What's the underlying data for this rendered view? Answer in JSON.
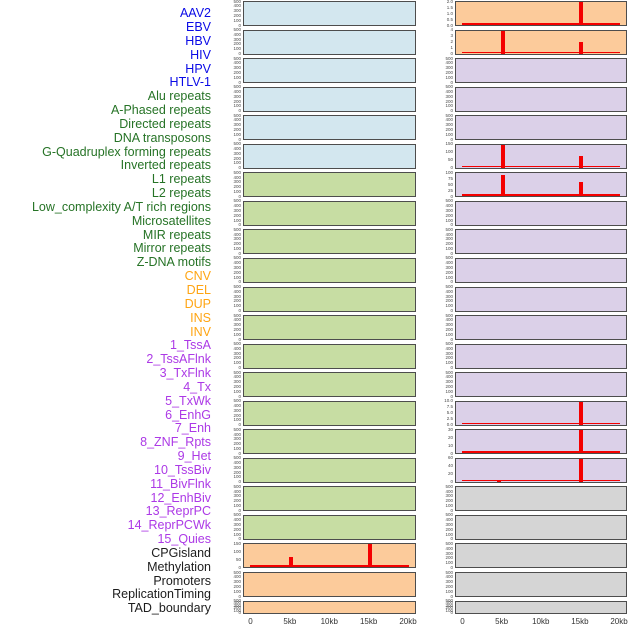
{
  "chart_data": {
    "type": "area",
    "description_style": "Multi-track genomic feature density figure: two columns of filled area panels, red spike overlays at 5kb and 15kb positions, shared 0-20kb x-axis",
    "x_axis": {
      "ticks": [
        "0",
        "5kb",
        "10kb",
        "15kb",
        "20kb"
      ],
      "range_kb": [
        0,
        20
      ],
      "grid": false,
      "legend": "none"
    },
    "row_labels": [
      {
        "text": "AAV2",
        "group": "virus"
      },
      {
        "text": "EBV",
        "group": "virus"
      },
      {
        "text": "HBV",
        "group": "virus"
      },
      {
        "text": "HIV",
        "group": "virus"
      },
      {
        "text": "HPV",
        "group": "virus"
      },
      {
        "text": "HTLV-1",
        "group": "virus"
      },
      {
        "text": "Alu repeats",
        "group": "repeat"
      },
      {
        "text": "A-Phased repeats",
        "group": "repeat"
      },
      {
        "text": "Directed repeats",
        "group": "repeat"
      },
      {
        "text": "DNA transposons",
        "group": "repeat"
      },
      {
        "text": "G-Quadruplex forming repeats",
        "group": "repeat"
      },
      {
        "text": "Inverted repeats",
        "group": "repeat"
      },
      {
        "text": "L1 repeats",
        "group": "repeat"
      },
      {
        "text": "L2 repeats",
        "group": "repeat"
      },
      {
        "text": "Low_complexity A/T rich regions",
        "group": "repeat"
      },
      {
        "text": "Microsatellites",
        "group": "repeat"
      },
      {
        "text": "MIR repeats",
        "group": "repeat"
      },
      {
        "text": "Mirror repeats",
        "group": "repeat"
      },
      {
        "text": "Z-DNA motifs",
        "group": "repeat"
      },
      {
        "text": "CNV",
        "group": "sv"
      },
      {
        "text": "DEL",
        "group": "sv"
      },
      {
        "text": "DUP",
        "group": "sv"
      },
      {
        "text": "INS",
        "group": "sv"
      },
      {
        "text": "INV",
        "group": "sv"
      },
      {
        "text": "1_TssA",
        "group": "chromatin"
      },
      {
        "text": "2_TssAFlnk",
        "group": "chromatin"
      },
      {
        "text": "3_TxFlnk",
        "group": "chromatin"
      },
      {
        "text": "4_Tx",
        "group": "chromatin"
      },
      {
        "text": "5_TxWk",
        "group": "chromatin"
      },
      {
        "text": "6_EnhG",
        "group": "chromatin"
      },
      {
        "text": "7_Enh",
        "group": "chromatin"
      },
      {
        "text": "8_ZNF_Rpts",
        "group": "chromatin"
      },
      {
        "text": "9_Het",
        "group": "chromatin"
      },
      {
        "text": "10_TssBiv",
        "group": "chromatin"
      },
      {
        "text": "11_BivFlnk",
        "group": "chromatin"
      },
      {
        "text": "12_EnhBiv",
        "group": "chromatin"
      },
      {
        "text": "13_ReprPC",
        "group": "chromatin"
      },
      {
        "text": "14_ReprPCWk",
        "group": "chromatin"
      },
      {
        "text": "15_Quies",
        "group": "chromatin"
      },
      {
        "text": "CPGisland",
        "group": "other"
      },
      {
        "text": "Methylation",
        "group": "other"
      },
      {
        "text": "Promoters",
        "group": "other"
      },
      {
        "text": "ReplicationTiming",
        "group": "other"
      },
      {
        "text": "TAD_boundary",
        "group": "other"
      }
    ],
    "panels": {
      "left": [
        {
          "name": "AAV2",
          "fill": "blue",
          "yticks": [
            "500",
            "400",
            "300",
            "200",
            "100",
            "0"
          ],
          "spikes": []
        },
        {
          "name": "EBV",
          "fill": "blue",
          "yticks": [
            "500",
            "400",
            "300",
            "200",
            "100",
            "0"
          ],
          "spikes": []
        },
        {
          "name": "HBV",
          "fill": "blue",
          "yticks": [
            "500",
            "400",
            "300",
            "200",
            "100",
            "0"
          ],
          "spikes": []
        },
        {
          "name": "HIV",
          "fill": "blue",
          "yticks": [
            "500",
            "400",
            "300",
            "200",
            "100",
            "0"
          ],
          "spikes": []
        },
        {
          "name": "HPV",
          "fill": "blue",
          "yticks": [
            "500",
            "400",
            "300",
            "200",
            "100",
            "0"
          ],
          "spikes": []
        },
        {
          "name": "HTLV-1",
          "fill": "blue",
          "yticks": [
            "500",
            "400",
            "300",
            "200",
            "100",
            "0"
          ],
          "spikes": []
        },
        {
          "name": "Alu repeats",
          "fill": "green",
          "yticks": [
            "500",
            "400",
            "300",
            "200",
            "100",
            "0"
          ],
          "spikes": []
        },
        {
          "name": "A-Phased repeats",
          "fill": "green",
          "yticks": [
            "500",
            "400",
            "300",
            "200",
            "100",
            "0"
          ],
          "spikes": []
        },
        {
          "name": "Directed repeats",
          "fill": "green",
          "yticks": [
            "500",
            "400",
            "300",
            "200",
            "100",
            "0"
          ],
          "spikes": []
        },
        {
          "name": "DNA transposons",
          "fill": "green",
          "yticks": [
            "500",
            "400",
            "300",
            "200",
            "100",
            "0"
          ],
          "spikes": []
        },
        {
          "name": "G-Quadruplex forming repeats",
          "fill": "green",
          "yticks": [
            "500",
            "400",
            "300",
            "200",
            "100",
            "0"
          ],
          "spikes": []
        },
        {
          "name": "Inverted repeats",
          "fill": "green",
          "yticks": [
            "500",
            "400",
            "300",
            "200",
            "100",
            "0"
          ],
          "spikes": []
        },
        {
          "name": "L1 repeats",
          "fill": "green",
          "yticks": [
            "500",
            "400",
            "300",
            "200",
            "100",
            "0"
          ],
          "spikes": []
        },
        {
          "name": "L2 repeats",
          "fill": "green",
          "yticks": [
            "500",
            "400",
            "300",
            "200",
            "100",
            "0"
          ],
          "spikes": []
        },
        {
          "name": "Low_complexity A/T rich regions",
          "fill": "green",
          "yticks": [
            "500",
            "400",
            "300",
            "200",
            "100",
            "0"
          ],
          "spikes": []
        },
        {
          "name": "Microsatellites",
          "fill": "green",
          "yticks": [
            "500",
            "400",
            "300",
            "200",
            "100",
            "0"
          ],
          "spikes": []
        },
        {
          "name": "MIR repeats",
          "fill": "green",
          "yticks": [
            "500",
            "400",
            "300",
            "200",
            "100",
            "0"
          ],
          "spikes": []
        },
        {
          "name": "Mirror repeats",
          "fill": "green",
          "yticks": [
            "500",
            "400",
            "300",
            "200",
            "100",
            "0"
          ],
          "spikes": []
        },
        {
          "name": "Z-DNA motifs",
          "fill": "green",
          "yticks": [
            "500",
            "400",
            "300",
            "200",
            "100",
            "0"
          ],
          "spikes": []
        },
        {
          "name": "CNV",
          "fill": "orange",
          "yticks": [
            "150",
            "100",
            "50",
            "0"
          ],
          "spikes": [
            {
              "kb": 5,
              "frac": 0.47
            },
            {
              "kb": 15,
              "frac": 1.0
            }
          ]
        },
        {
          "name": "DEL",
          "fill": "orange",
          "yticks": [
            "500",
            "400",
            "300",
            "200",
            "100",
            "0"
          ],
          "spikes": []
        },
        {
          "name": "DUP",
          "fill": "orange",
          "yticks": [
            "500",
            "400",
            "300",
            "200",
            "100",
            "0"
          ],
          "spikes": []
        }
      ],
      "right": [
        {
          "name": "INS",
          "fill": "orange",
          "yticks": [
            "2.0",
            "1.5",
            "1.0",
            "0.5",
            "0.0"
          ],
          "spikes": [
            {
              "kb": 15,
              "frac": 1.0
            }
          ]
        },
        {
          "name": "INV",
          "fill": "orange",
          "yticks": [
            "4",
            "3",
            "2",
            "1",
            "0"
          ],
          "spikes": [
            {
              "kb": 5,
              "frac": 1.0
            },
            {
              "kb": 15,
              "frac": 0.5
            }
          ]
        },
        {
          "name": "1_TssA",
          "fill": "purple",
          "yticks": [
            "500",
            "400",
            "300",
            "200",
            "100",
            "0"
          ],
          "spikes": []
        },
        {
          "name": "2_TssAFlnk",
          "fill": "purple",
          "yticks": [
            "500",
            "400",
            "300",
            "200",
            "100",
            "0"
          ],
          "spikes": []
        },
        {
          "name": "3_TxFlnk",
          "fill": "purple",
          "yticks": [
            "500",
            "400",
            "300",
            "200",
            "100",
            "0"
          ],
          "spikes": []
        },
        {
          "name": "4_Tx",
          "fill": "purple",
          "yticks": [
            "150",
            "100",
            "50",
            "0"
          ],
          "spikes": [
            {
              "kb": 5,
              "frac": 1.0
            },
            {
              "kb": 15,
              "frac": 0.5
            }
          ]
        },
        {
          "name": "5_TxWk",
          "fill": "purple",
          "yticks": [
            "100",
            "75",
            "50",
            "25",
            "0"
          ],
          "spikes": [
            {
              "kb": 5,
              "frac": 0.93
            },
            {
              "kb": 15,
              "frac": 0.62
            }
          ]
        },
        {
          "name": "6_EnhG",
          "fill": "purple",
          "yticks": [
            "500",
            "400",
            "300",
            "200",
            "100",
            "0"
          ],
          "spikes": []
        },
        {
          "name": "7_Enh",
          "fill": "purple",
          "yticks": [
            "500",
            "400",
            "300",
            "200",
            "100",
            "0"
          ],
          "spikes": []
        },
        {
          "name": "8_ZNF_Rpts",
          "fill": "purple",
          "yticks": [
            "500",
            "400",
            "300",
            "200",
            "100",
            "0"
          ],
          "spikes": []
        },
        {
          "name": "9_Het",
          "fill": "purple",
          "yticks": [
            "500",
            "400",
            "300",
            "200",
            "100",
            "0"
          ],
          "spikes": []
        },
        {
          "name": "10_TssBiv",
          "fill": "purple",
          "yticks": [
            "500",
            "400",
            "300",
            "200",
            "100",
            "0"
          ],
          "spikes": []
        },
        {
          "name": "11_BivFlnk",
          "fill": "purple",
          "yticks": [
            "500",
            "400",
            "300",
            "200",
            "100",
            "0"
          ],
          "spikes": []
        },
        {
          "name": "12_EnhBiv",
          "fill": "purple",
          "yticks": [
            "500",
            "400",
            "300",
            "200",
            "100",
            "0"
          ],
          "spikes": []
        },
        {
          "name": "13_ReprPC",
          "fill": "purple",
          "yticks": [
            "10.0",
            "7.5",
            "5.0",
            "2.5",
            "0.0"
          ],
          "spikes": [
            {
              "kb": 15,
              "frac": 1.0
            }
          ]
        },
        {
          "name": "14_ReprPCWk",
          "fill": "purple",
          "yticks": [
            "30",
            "20",
            "10",
            "0"
          ],
          "spikes": [
            {
              "kb": 15,
              "frac": 1.0
            }
          ]
        },
        {
          "name": "15_Quies",
          "fill": "purple",
          "yticks": [
            "60",
            "40",
            "20",
            "0"
          ],
          "spikes": [
            {
              "kb": 4.6,
              "frac": 0.1
            },
            {
              "kb": 15,
              "frac": 1.0
            }
          ]
        },
        {
          "name": "CPGisland",
          "fill": "gray",
          "yticks": [
            "500",
            "400",
            "300",
            "200",
            "100",
            "0"
          ],
          "spikes": []
        },
        {
          "name": "Methylation",
          "fill": "gray",
          "yticks": [
            "500",
            "400",
            "300",
            "200",
            "100",
            "0"
          ],
          "spikes": []
        },
        {
          "name": "Promoters",
          "fill": "gray",
          "yticks": [
            "500",
            "400",
            "300",
            "200",
            "100",
            "0"
          ],
          "spikes": []
        },
        {
          "name": "ReplicationTiming",
          "fill": "gray",
          "yticks": [
            "500",
            "400",
            "300",
            "200",
            "100",
            "0"
          ],
          "spikes": []
        },
        {
          "name": "TAD_boundary",
          "fill": "gray",
          "yticks": [
            "500",
            "400",
            "300",
            "200",
            "100",
            "0"
          ],
          "spikes": []
        }
      ]
    }
  },
  "colors": {
    "label_virus": "#0A0AE6",
    "label_repeat": "#267326",
    "label_sv": "#FFA513",
    "label_chromatin": "#AC39E6",
    "label_other": "#1C1C1C",
    "fill_blue": "#D3E7EF",
    "fill_green": "#C7DDA3",
    "fill_orange": "#FCCB9B",
    "fill_purple": "#DBD0E8",
    "fill_gray": "#D5D5D5",
    "panel_border": "#4D4D4D",
    "spike_red": "#F40000",
    "ytick_text": "#4A4A4A",
    "xtick_text": "#333333"
  }
}
